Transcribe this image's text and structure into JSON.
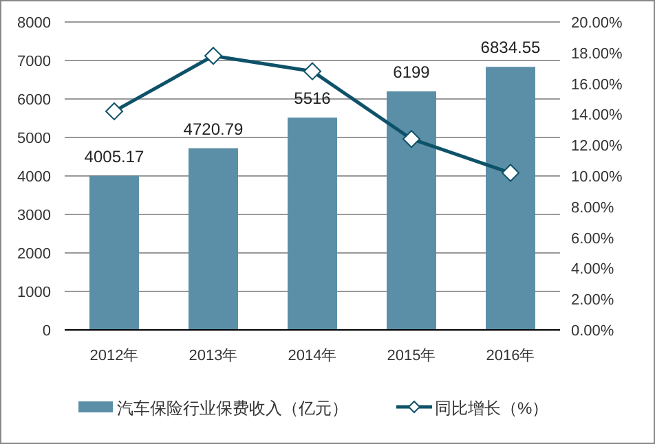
{
  "chart_data": {
    "type": "bar",
    "categories": [
      "2012年",
      "2013年",
      "2014年",
      "2015年",
      "2016年"
    ],
    "series": [
      {
        "name": "汽车保险行业保费收入（亿元）",
        "color": "#5b8fa8",
        "values": [
          4005.17,
          4720.79,
          5516,
          6199,
          6834.55
        ],
        "value_labels": [
          "4005.17",
          "4720.79",
          "5516",
          "6199",
          "6834.55"
        ]
      },
      {
        "name": "同比增长（%）",
        "type": "line",
        "axis": "y2",
        "color": "#0e5269",
        "marker": "diamond",
        "values": [
          14.2,
          17.8,
          16.8,
          12.4,
          10.2
        ]
      }
    ],
    "ylim": [
      0,
      8000
    ],
    "yticks": [
      0,
      1000,
      2000,
      3000,
      4000,
      5000,
      6000,
      7000,
      8000
    ],
    "y2lim": [
      0,
      20
    ],
    "y2ticks": [
      {
        "value": 0,
        "label": "0.00%"
      },
      {
        "value": 2,
        "label": "2.00%"
      },
      {
        "value": 4,
        "label": "4.00%"
      },
      {
        "value": 6,
        "label": "6.00%"
      },
      {
        "value": 8,
        "label": "8.00%"
      },
      {
        "value": 10,
        "label": "10.00%"
      },
      {
        "value": 12,
        "label": "12.00%"
      },
      {
        "value": 14,
        "label": "14.00%"
      },
      {
        "value": 16,
        "label": "16.00%"
      },
      {
        "value": 18,
        "label": "18.00%"
      },
      {
        "value": 20,
        "label": "20.00%"
      }
    ],
    "grid": "y",
    "legend": "bottom"
  }
}
